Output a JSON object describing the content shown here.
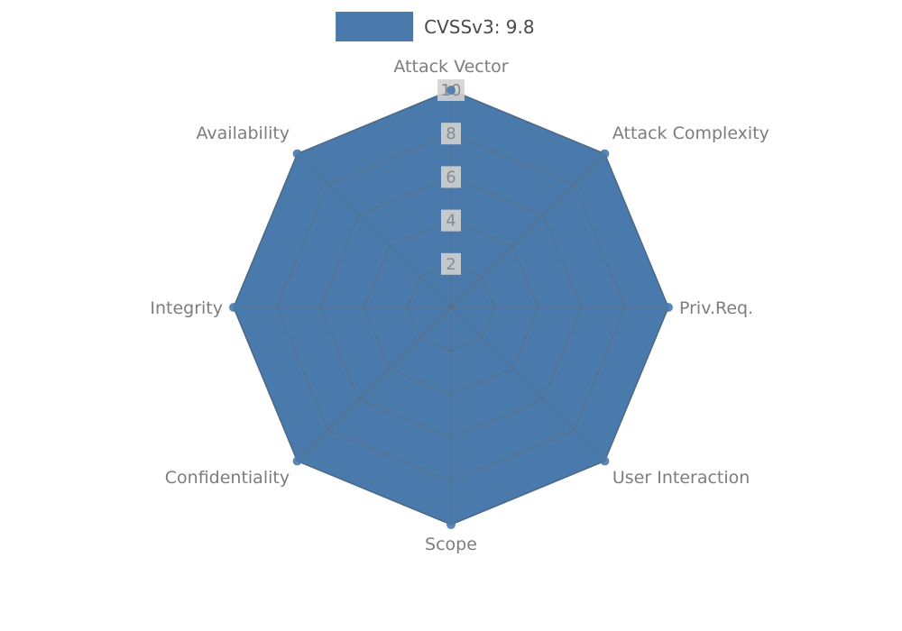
{
  "chart_data": {
    "type": "radar",
    "title": "",
    "legend": {
      "label": "CVSSv3: 9.8",
      "position": "top-center"
    },
    "categories": [
      "Attack Vector",
      "Attack Complexity",
      "Priv.Req.",
      "User Interaction",
      "Scope",
      "Confidentiality",
      "Integrity",
      "Availability"
    ],
    "series": [
      {
        "name": "CVSSv3: 9.8",
        "values": [
          10,
          10,
          10,
          10,
          10,
          10,
          10,
          10
        ],
        "color": "#4a7aab",
        "edge_color": "#3d6a99"
      }
    ],
    "ticks": [
      2,
      4,
      6,
      8,
      10
    ],
    "rlim": [
      0,
      10
    ],
    "grid": true,
    "styles": {
      "grid_color": "rgba(100,100,100,0.55)",
      "tick_label_color": "#8a8a8a",
      "tick_box_color": "#d2d2d2",
      "axis_label_color": "#7d7d7d",
      "legend_text_color": "#4a4a4a",
      "background": "#ffffff"
    }
  }
}
